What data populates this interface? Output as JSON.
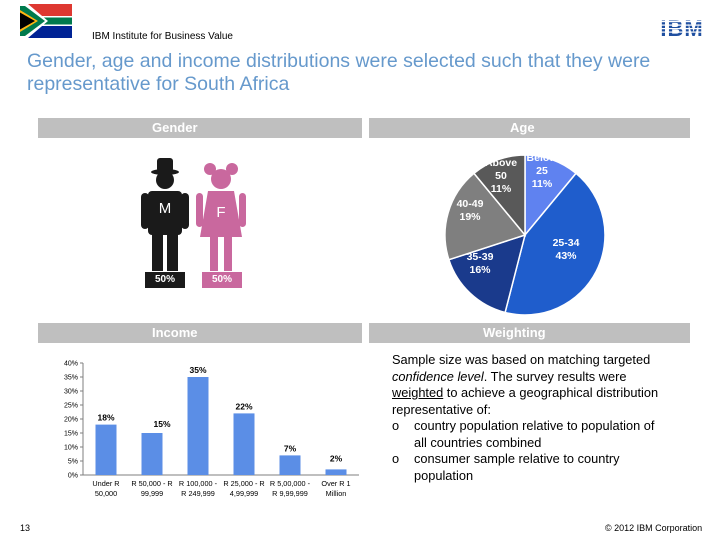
{
  "header": {
    "org": "IBM Institute for Business Value",
    "logo_text": "IBM",
    "title": "Gender, age and income distributions were selected such that they were representative for South Africa"
  },
  "gender": {
    "heading": "Gender",
    "male_letter": "M",
    "female_letter": "F",
    "male_pct": "50%",
    "female_pct": "50%"
  },
  "age": {
    "heading": "Age",
    "labels": [
      {
        "name": "Below 25",
        "line1": "Below",
        "line2": "25",
        "pct": "11%"
      },
      {
        "name": "25-34",
        "line1": "25-34",
        "line2": "",
        "pct": "43%"
      },
      {
        "name": "35-39",
        "line1": "35-39",
        "line2": "",
        "pct": "16%"
      },
      {
        "name": "40-49",
        "line1": "40-49",
        "line2": "",
        "pct": "19%"
      },
      {
        "name": "Above 50",
        "line1": "Above",
        "line2": "50",
        "pct": "11%"
      }
    ]
  },
  "income": {
    "heading": "Income"
  },
  "weighting": {
    "heading": "Weighting",
    "p1": "Sample size was based on matching targeted",
    "p2_em": "confidence level",
    "p2_rest": ". The survey results were",
    "p3_u": "weighted",
    "p3_rest": " to achieve a geographical distribution",
    "p4": "representative of:",
    "bullet_glyph": "o",
    "b1_line1": "country population relative to population of",
    "b1_line2": "all countries combined",
    "b2_line1": "consumer sample relative to country",
    "b2_line2": "population"
  },
  "footer": {
    "page": "13",
    "copyright": "© 2012 IBM Corporation"
  },
  "chart_data": [
    {
      "type": "bar",
      "categories": [
        "Under R 50,000",
        "R 50,000 - R 99,999",
        "R 100,000 - R 249,999",
        "R 25,000 - R 4,99,999",
        "R 5,00,000 - R 9,99,999",
        "Over R 1 Million"
      ],
      "category_lines": [
        [
          "Under R",
          "50,000"
        ],
        [
          "R 50,000 - R",
          "99,999"
        ],
        [
          "R 100,000 -",
          "R 249,999"
        ],
        [
          "R 25,000 - R",
          "4,99,999"
        ],
        [
          "R 5,00,000 -",
          "R 9,99,999"
        ],
        [
          "Over R 1",
          "Million"
        ]
      ],
      "values": [
        18,
        15,
        35,
        22,
        7,
        2
      ],
      "value_labels": [
        "18%",
        "15%",
        "35%",
        "22%",
        "7%",
        "2%"
      ],
      "yticks": [
        "0%",
        "5%",
        "10%",
        "15%",
        "20%",
        "25%",
        "30%",
        "35%",
        "40%"
      ],
      "ylim": [
        0,
        40
      ],
      "color": "#5b8ee6",
      "grid": false
    },
    {
      "type": "pie",
      "categories": [
        "Below 25",
        "25-34",
        "35-39",
        "40-49",
        "Above 50"
      ],
      "values": [
        11,
        43,
        16,
        19,
        11
      ],
      "colors": [
        "#5f82f0",
        "#1f5dcc",
        "#1a3a8c",
        "#7f7f7f",
        "#595959"
      ]
    }
  ]
}
